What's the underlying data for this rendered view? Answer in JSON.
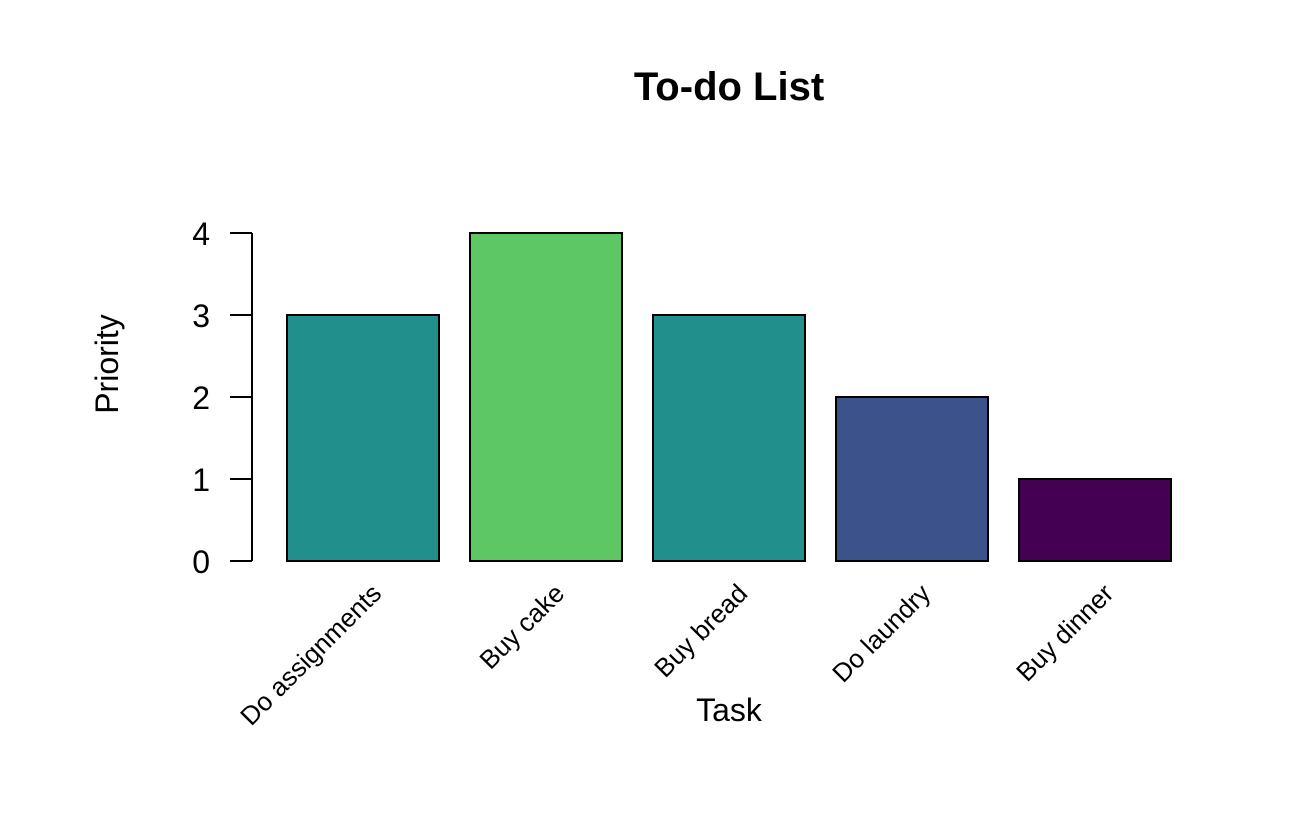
{
  "chart_data": {
    "type": "bar",
    "title": "To-do List",
    "xlabel": "Task",
    "ylabel": "Priority",
    "categories": [
      "Do assignments",
      "Buy cake",
      "Buy bread",
      "Do laundry",
      "Buy dinner"
    ],
    "values": [
      3,
      4,
      3,
      2,
      1
    ],
    "colors": [
      "#21908C",
      "#5DC863",
      "#21908C",
      "#3B528B",
      "#440154"
    ],
    "yticks": [
      "0",
      "1",
      "2",
      "3",
      "4"
    ],
    "ylim": [
      0,
      4
    ],
    "grid": false,
    "legend": "none"
  }
}
